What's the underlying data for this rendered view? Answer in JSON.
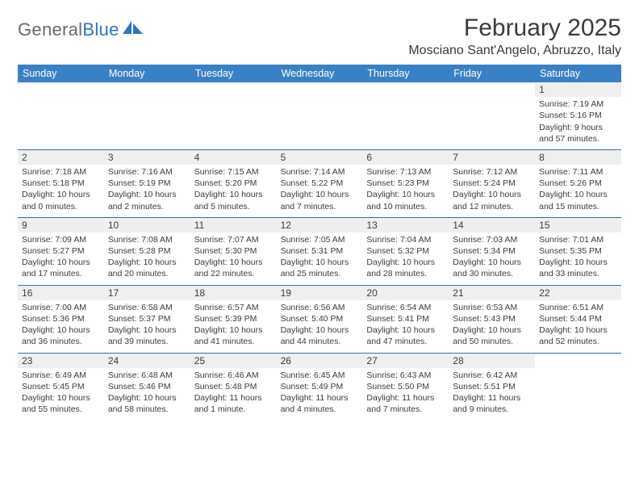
{
  "logo": {
    "part1": "General",
    "part2": "Blue"
  },
  "title": "February 2025",
  "location": "Mosciano Sant'Angelo, Abruzzo, Italy",
  "colors": {
    "header_bg": "#3a80c4",
    "header_text": "#ffffff",
    "row_divider": "#3a6fa7",
    "daynum_bg": "#efefef",
    "body_text": "#3b3b3b",
    "logo_gray": "#6a6a6a",
    "logo_blue": "#2f75c1",
    "page_bg": "#ffffff"
  },
  "weekdays": [
    "Sunday",
    "Monday",
    "Tuesday",
    "Wednesday",
    "Thursday",
    "Friday",
    "Saturday"
  ],
  "weeks": [
    [
      {
        "n": "",
        "sr": "",
        "ss": "",
        "dl": ""
      },
      {
        "n": "",
        "sr": "",
        "ss": "",
        "dl": ""
      },
      {
        "n": "",
        "sr": "",
        "ss": "",
        "dl": ""
      },
      {
        "n": "",
        "sr": "",
        "ss": "",
        "dl": ""
      },
      {
        "n": "",
        "sr": "",
        "ss": "",
        "dl": ""
      },
      {
        "n": "",
        "sr": "",
        "ss": "",
        "dl": ""
      },
      {
        "n": "1",
        "sr": "Sunrise: 7:19 AM",
        "ss": "Sunset: 5:16 PM",
        "dl": "Daylight: 9 hours and 57 minutes."
      }
    ],
    [
      {
        "n": "2",
        "sr": "Sunrise: 7:18 AM",
        "ss": "Sunset: 5:18 PM",
        "dl": "Daylight: 10 hours and 0 minutes."
      },
      {
        "n": "3",
        "sr": "Sunrise: 7:16 AM",
        "ss": "Sunset: 5:19 PM",
        "dl": "Daylight: 10 hours and 2 minutes."
      },
      {
        "n": "4",
        "sr": "Sunrise: 7:15 AM",
        "ss": "Sunset: 5:20 PM",
        "dl": "Daylight: 10 hours and 5 minutes."
      },
      {
        "n": "5",
        "sr": "Sunrise: 7:14 AM",
        "ss": "Sunset: 5:22 PM",
        "dl": "Daylight: 10 hours and 7 minutes."
      },
      {
        "n": "6",
        "sr": "Sunrise: 7:13 AM",
        "ss": "Sunset: 5:23 PM",
        "dl": "Daylight: 10 hours and 10 minutes."
      },
      {
        "n": "7",
        "sr": "Sunrise: 7:12 AM",
        "ss": "Sunset: 5:24 PM",
        "dl": "Daylight: 10 hours and 12 minutes."
      },
      {
        "n": "8",
        "sr": "Sunrise: 7:11 AM",
        "ss": "Sunset: 5:26 PM",
        "dl": "Daylight: 10 hours and 15 minutes."
      }
    ],
    [
      {
        "n": "9",
        "sr": "Sunrise: 7:09 AM",
        "ss": "Sunset: 5:27 PM",
        "dl": "Daylight: 10 hours and 17 minutes."
      },
      {
        "n": "10",
        "sr": "Sunrise: 7:08 AM",
        "ss": "Sunset: 5:28 PM",
        "dl": "Daylight: 10 hours and 20 minutes."
      },
      {
        "n": "11",
        "sr": "Sunrise: 7:07 AM",
        "ss": "Sunset: 5:30 PM",
        "dl": "Daylight: 10 hours and 22 minutes."
      },
      {
        "n": "12",
        "sr": "Sunrise: 7:05 AM",
        "ss": "Sunset: 5:31 PM",
        "dl": "Daylight: 10 hours and 25 minutes."
      },
      {
        "n": "13",
        "sr": "Sunrise: 7:04 AM",
        "ss": "Sunset: 5:32 PM",
        "dl": "Daylight: 10 hours and 28 minutes."
      },
      {
        "n": "14",
        "sr": "Sunrise: 7:03 AM",
        "ss": "Sunset: 5:34 PM",
        "dl": "Daylight: 10 hours and 30 minutes."
      },
      {
        "n": "15",
        "sr": "Sunrise: 7:01 AM",
        "ss": "Sunset: 5:35 PM",
        "dl": "Daylight: 10 hours and 33 minutes."
      }
    ],
    [
      {
        "n": "16",
        "sr": "Sunrise: 7:00 AM",
        "ss": "Sunset: 5:36 PM",
        "dl": "Daylight: 10 hours and 36 minutes."
      },
      {
        "n": "17",
        "sr": "Sunrise: 6:58 AM",
        "ss": "Sunset: 5:37 PM",
        "dl": "Daylight: 10 hours and 39 minutes."
      },
      {
        "n": "18",
        "sr": "Sunrise: 6:57 AM",
        "ss": "Sunset: 5:39 PM",
        "dl": "Daylight: 10 hours and 41 minutes."
      },
      {
        "n": "19",
        "sr": "Sunrise: 6:56 AM",
        "ss": "Sunset: 5:40 PM",
        "dl": "Daylight: 10 hours and 44 minutes."
      },
      {
        "n": "20",
        "sr": "Sunrise: 6:54 AM",
        "ss": "Sunset: 5:41 PM",
        "dl": "Daylight: 10 hours and 47 minutes."
      },
      {
        "n": "21",
        "sr": "Sunrise: 6:53 AM",
        "ss": "Sunset: 5:43 PM",
        "dl": "Daylight: 10 hours and 50 minutes."
      },
      {
        "n": "22",
        "sr": "Sunrise: 6:51 AM",
        "ss": "Sunset: 5:44 PM",
        "dl": "Daylight: 10 hours and 52 minutes."
      }
    ],
    [
      {
        "n": "23",
        "sr": "Sunrise: 6:49 AM",
        "ss": "Sunset: 5:45 PM",
        "dl": "Daylight: 10 hours and 55 minutes."
      },
      {
        "n": "24",
        "sr": "Sunrise: 6:48 AM",
        "ss": "Sunset: 5:46 PM",
        "dl": "Daylight: 10 hours and 58 minutes."
      },
      {
        "n": "25",
        "sr": "Sunrise: 6:46 AM",
        "ss": "Sunset: 5:48 PM",
        "dl": "Daylight: 11 hours and 1 minute."
      },
      {
        "n": "26",
        "sr": "Sunrise: 6:45 AM",
        "ss": "Sunset: 5:49 PM",
        "dl": "Daylight: 11 hours and 4 minutes."
      },
      {
        "n": "27",
        "sr": "Sunrise: 6:43 AM",
        "ss": "Sunset: 5:50 PM",
        "dl": "Daylight: 11 hours and 7 minutes."
      },
      {
        "n": "28",
        "sr": "Sunrise: 6:42 AM",
        "ss": "Sunset: 5:51 PM",
        "dl": "Daylight: 11 hours and 9 minutes."
      },
      {
        "n": "",
        "sr": "",
        "ss": "",
        "dl": ""
      }
    ]
  ]
}
